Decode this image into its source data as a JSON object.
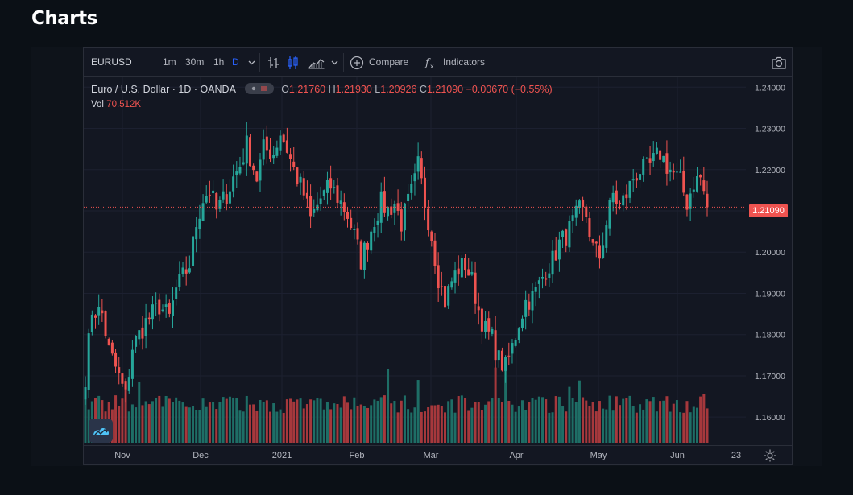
{
  "page": {
    "title": "Charts"
  },
  "toolbar": {
    "symbol": "EURUSD",
    "intervals": [
      "1m",
      "30m",
      "1h",
      "D"
    ],
    "selected_interval": "D",
    "compare_label": "Compare",
    "indicators_label": "Indicators",
    "icons": [
      "chevron-down-icon",
      "bar-style-icon",
      "candle-style-icon",
      "area-style-icon",
      "plus-circle-icon",
      "fx-icon",
      "camera-icon"
    ]
  },
  "legend": {
    "title": "Euro / U.S. Dollar · 1D · OANDA",
    "o_label": "O",
    "o": "1.21760",
    "h_label": "H",
    "h": "1.21930",
    "l_label": "L",
    "l": "1.20926",
    "c_label": "C",
    "c": "1.21090",
    "change": "−0.00670 (−0.55%)",
    "vol_label": "Vol",
    "vol": "70.512K"
  },
  "price_tag": "1.21090",
  "colors": {
    "up": "#26a69a",
    "down": "#ef5350",
    "vol_up": "#1e6e66",
    "vol_down": "#a6383c",
    "grid": "#1c2030",
    "background": "#131722"
  },
  "chart_data": {
    "type": "candlestick",
    "ylim": [
      1.1534,
      1.2424
    ],
    "y_ticks": [
      "1.24000",
      "1.23000",
      "1.22000",
      "1.21000",
      "1.20000",
      "1.19000",
      "1.18000",
      "1.17000",
      "1.16000"
    ],
    "x_ticks": [
      "Nov",
      "Dec",
      "2021",
      "Feb",
      "Mar",
      "Apr",
      "May",
      "Jun",
      "23"
    ],
    "last_price": 1.2109,
    "waypoints_close": [
      [
        0,
        1.17
      ],
      [
        2,
        1.186
      ],
      [
        5,
        1.185
      ],
      [
        7,
        1.176
      ],
      [
        9,
        1.172
      ],
      [
        12,
        1.165
      ],
      [
        14,
        1.177
      ],
      [
        18,
        1.183
      ],
      [
        20,
        1.185
      ],
      [
        22,
        1.187
      ],
      [
        25,
        1.184
      ],
      [
        27,
        1.191
      ],
      [
        31,
        1.197
      ],
      [
        33,
        1.207
      ],
      [
        35,
        1.213
      ],
      [
        37,
        1.215
      ],
      [
        39,
        1.21
      ],
      [
        42,
        1.214
      ],
      [
        44,
        1.218
      ],
      [
        46,
        1.221
      ],
      [
        48,
        1.226
      ],
      [
        51,
        1.218
      ],
      [
        53,
        1.225
      ],
      [
        56,
        1.224
      ],
      [
        58,
        1.229
      ],
      [
        60,
        1.225
      ],
      [
        62,
        1.22
      ],
      [
        65,
        1.214
      ],
      [
        67,
        1.208
      ],
      [
        70,
        1.213
      ],
      [
        73,
        1.216
      ],
      [
        76,
        1.212
      ],
      [
        78,
        1.209
      ],
      [
        80,
        1.204
      ],
      [
        82,
        1.198
      ],
      [
        84,
        1.203
      ],
      [
        86,
        1.208
      ],
      [
        88,
        1.212
      ],
      [
        90,
        1.21
      ],
      [
        92,
        1.212
      ],
      [
        94,
        1.207
      ],
      [
        96,
        1.212
      ],
      [
        98,
        1.217
      ],
      [
        99,
        1.221
      ],
      [
        101,
        1.212
      ],
      [
        103,
        1.204
      ],
      [
        105,
        1.194
      ],
      [
        107,
        1.188
      ],
      [
        109,
        1.193
      ],
      [
        111,
        1.196
      ],
      [
        113,
        1.197
      ],
      [
        115,
        1.193
      ],
      [
        117,
        1.186
      ],
      [
        119,
        1.181
      ],
      [
        121,
        1.179
      ],
      [
        123,
        1.174
      ],
      [
        125,
        1.172
      ],
      [
        127,
        1.177
      ],
      [
        129,
        1.183
      ],
      [
        131,
        1.188
      ],
      [
        133,
        1.189
      ],
      [
        135,
        1.192
      ],
      [
        137,
        1.196
      ],
      [
        139,
        1.198
      ],
      [
        141,
        1.202
      ],
      [
        143,
        1.204
      ],
      [
        145,
        1.207
      ],
      [
        147,
        1.21
      ],
      [
        149,
        1.209
      ],
      [
        151,
        1.201
      ],
      [
        153,
        1.199
      ],
      [
        155,
        1.207
      ],
      [
        157,
        1.214
      ],
      [
        159,
        1.211
      ],
      [
        161,
        1.214
      ],
      [
        163,
        1.218
      ],
      [
        165,
        1.22
      ],
      [
        167,
        1.22
      ],
      [
        169,
        1.222
      ],
      [
        171,
        1.224
      ],
      [
        173,
        1.221
      ],
      [
        175,
        1.219
      ],
      [
        177,
        1.217
      ],
      [
        179,
        1.212
      ],
      [
        181,
        1.217
      ],
      [
        183,
        1.218
      ],
      [
        185,
        1.211
      ]
    ],
    "volume_range": [
      0,
      120
    ]
  }
}
